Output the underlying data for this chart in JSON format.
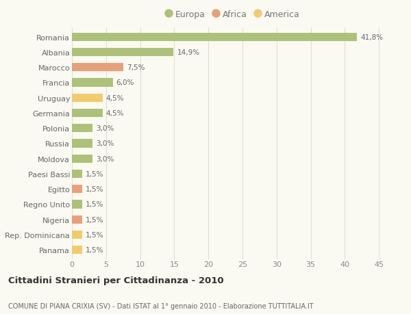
{
  "categories": [
    "Romania",
    "Albania",
    "Marocco",
    "Francia",
    "Uruguay",
    "Germania",
    "Polonia",
    "Russia",
    "Moldova",
    "Paesi Bassi",
    "Egitto",
    "Regno Unito",
    "Nigeria",
    "Rep. Dominicana",
    "Panama"
  ],
  "values": [
    41.8,
    14.9,
    7.5,
    6.0,
    4.5,
    4.5,
    3.0,
    3.0,
    3.0,
    1.5,
    1.5,
    1.5,
    1.5,
    1.5,
    1.5
  ],
  "colors": [
    "#adc178",
    "#adc178",
    "#e8a07a",
    "#adc178",
    "#f0cc6e",
    "#adc178",
    "#adc178",
    "#adc178",
    "#adc178",
    "#adc178",
    "#e8a07a",
    "#adc178",
    "#e8a07a",
    "#f0cc6e",
    "#f0cc6e"
  ],
  "labels": [
    "41,8%",
    "14,9%",
    "7,5%",
    "6,0%",
    "4,5%",
    "4,5%",
    "3,0%",
    "3,0%",
    "3,0%",
    "1,5%",
    "1,5%",
    "1,5%",
    "1,5%",
    "1,5%",
    "1,5%"
  ],
  "legend": [
    {
      "label": "Europa",
      "color": "#adc178"
    },
    {
      "label": "Africa",
      "color": "#e8a07a"
    },
    {
      "label": "America",
      "color": "#f0cc6e"
    }
  ],
  "title": "Cittadini Stranieri per Cittadinanza - 2010",
  "subtitle": "COMUNE DI PIANA CRIXIA (SV) - Dati ISTAT al 1° gennaio 2010 - Elaborazione TUTTITALIA.IT",
  "xlim": [
    0,
    47
  ],
  "xticks": [
    0,
    5,
    10,
    15,
    20,
    25,
    30,
    35,
    40,
    45
  ],
  "background_color": "#fafaf2",
  "grid_color": "#e0e0d0",
  "bar_height": 0.55
}
